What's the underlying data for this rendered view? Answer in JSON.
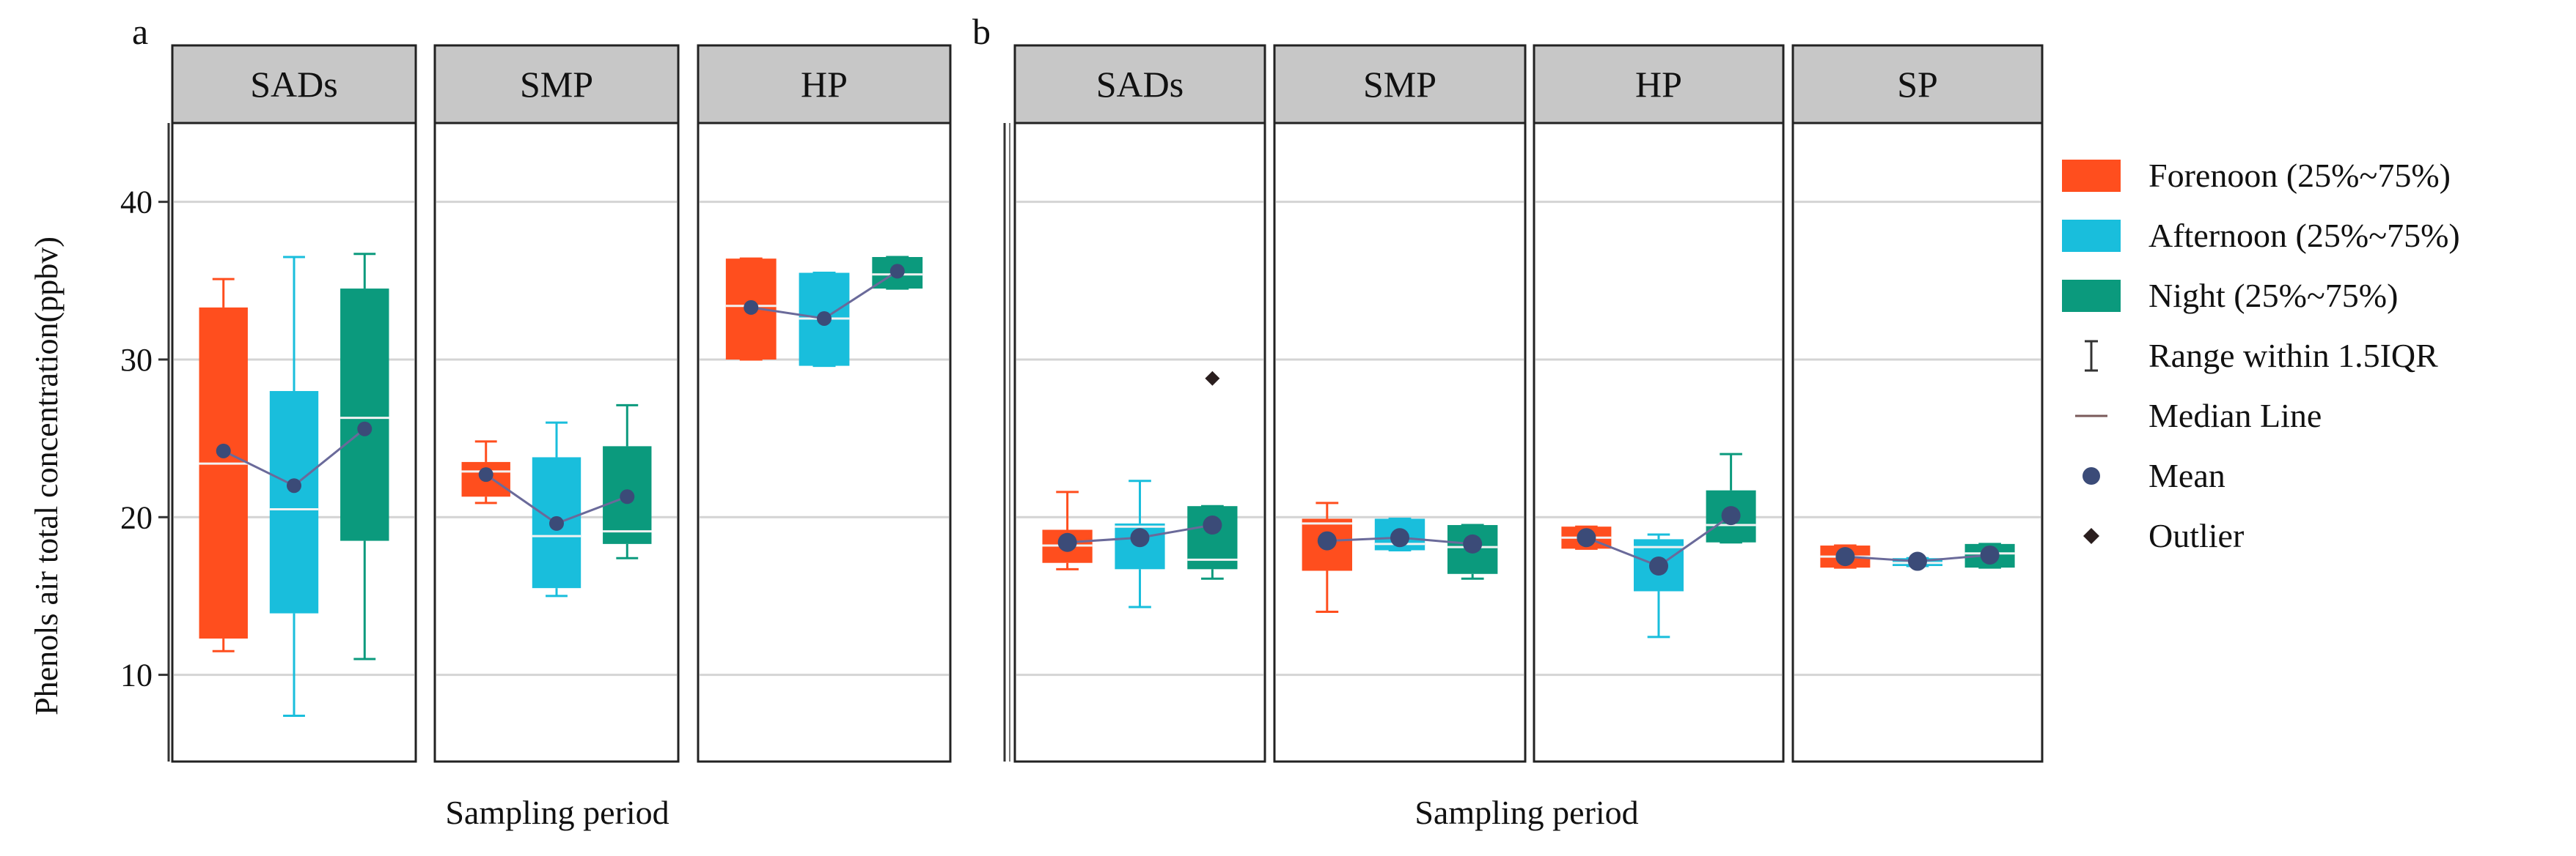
{
  "chart_data": [
    {
      "panel_label": "a",
      "type": "box",
      "ylabel": "Phenols air total concentration(ppbv)",
      "xlabel": "Sampling period",
      "ylim": [
        4.5,
        45
      ],
      "yticks": [
        10,
        20,
        30,
        40
      ],
      "grid": true,
      "groups": [
        "Forenoon",
        "Afternoon",
        "Night"
      ],
      "facets": [
        {
          "label": "SADs",
          "boxes": [
            {
              "group": "Forenoon",
              "whisker_low": 11.5,
              "q1": 12.3,
              "median": 23.4,
              "q3": 33.3,
              "whisker_high": 35.1,
              "mean": 24.2
            },
            {
              "group": "Afternoon",
              "whisker_low": 7.4,
              "q1": 13.9,
              "median": 20.5,
              "q3": 28.0,
              "whisker_high": 36.5,
              "mean": 22.0
            },
            {
              "group": "Night",
              "whisker_low": 11.0,
              "q1": 18.5,
              "median": 26.3,
              "q3": 34.5,
              "whisker_high": 36.7,
              "mean": 25.6
            }
          ]
        },
        {
          "label": "SMP",
          "boxes": [
            {
              "group": "Forenoon",
              "whisker_low": 20.9,
              "q1": 21.3,
              "median": 22.9,
              "q3": 23.5,
              "whisker_high": 24.8,
              "mean": 22.7
            },
            {
              "group": "Afternoon",
              "whisker_low": 15.0,
              "q1": 15.5,
              "median": 18.8,
              "q3": 23.8,
              "whisker_high": 26.0,
              "mean": 19.6
            },
            {
              "group": "Night",
              "whisker_low": 17.4,
              "q1": 18.3,
              "median": 19.1,
              "q3": 24.5,
              "whisker_high": 27.1,
              "mean": 21.3
            }
          ]
        },
        {
          "label": "HP",
          "boxes": [
            {
              "group": "Forenoon",
              "whisker_low": 30.0,
              "q1": 30.0,
              "median": 33.4,
              "q3": 36.4,
              "whisker_high": 36.4,
              "mean": 33.3
            },
            {
              "group": "Afternoon",
              "whisker_low": 29.6,
              "q1": 29.6,
              "median": 32.6,
              "q3": 35.5,
              "whisker_high": 35.5,
              "mean": 32.6
            },
            {
              "group": "Night",
              "whisker_low": 34.5,
              "q1": 34.5,
              "median": 35.4,
              "q3": 36.5,
              "whisker_high": 36.5,
              "mean": 35.6
            }
          ]
        }
      ]
    },
    {
      "panel_label": "b",
      "type": "box",
      "xlabel": "Sampling period",
      "ylim": [
        4.5,
        45
      ],
      "grid": true,
      "groups": [
        "Forenoon",
        "Afternoon",
        "Night"
      ],
      "facets": [
        {
          "label": "SADs",
          "boxes": [
            {
              "group": "Forenoon",
              "whisker_low": 16.7,
              "q1": 17.1,
              "median": 18.2,
              "q3": 19.2,
              "whisker_high": 21.6,
              "mean": 18.4
            },
            {
              "group": "Afternoon",
              "whisker_low": 14.3,
              "q1": 16.7,
              "median": 19.4,
              "q3": 19.6,
              "whisker_high": 22.3,
              "mean": 18.7
            },
            {
              "group": "Night",
              "whisker_low": 16.1,
              "q1": 16.7,
              "median": 17.3,
              "q3": 20.7,
              "whisker_high": 20.7,
              "mean": 19.5,
              "outliers": [
                28.8
              ]
            }
          ]
        },
        {
          "label": "SMP",
          "boxes": [
            {
              "group": "Forenoon",
              "whisker_low": 14.0,
              "q1": 16.6,
              "median": 19.6,
              "q3": 19.9,
              "whisker_high": 20.9,
              "mean": 18.5
            },
            {
              "group": "Afternoon",
              "whisker_low": 17.9,
              "q1": 17.9,
              "median": 18.3,
              "q3": 19.9,
              "whisker_high": 19.9,
              "mean": 18.7
            },
            {
              "group": "Night",
              "whisker_low": 16.1,
              "q1": 16.4,
              "median": 18.1,
              "q3": 19.5,
              "whisker_high": 19.5,
              "mean": 18.3
            }
          ]
        },
        {
          "label": "HP",
          "boxes": [
            {
              "group": "Forenoon",
              "whisker_low": 18.0,
              "q1": 18.0,
              "median": 18.7,
              "q3": 19.4,
              "whisker_high": 19.4,
              "mean": 18.7
            },
            {
              "group": "Afternoon",
              "whisker_low": 12.4,
              "q1": 15.3,
              "median": 18.1,
              "q3": 18.6,
              "whisker_high": 18.9,
              "mean": 16.9
            },
            {
              "group": "Night",
              "whisker_low": 18.4,
              "q1": 18.4,
              "median": 19.5,
              "q3": 21.7,
              "whisker_high": 24.0,
              "mean": 20.1
            }
          ]
        },
        {
          "label": "SP",
          "boxes": [
            {
              "group": "Forenoon",
              "whisker_low": 16.8,
              "q1": 16.8,
              "median": 17.5,
              "q3": 18.2,
              "whisker_high": 18.2,
              "mean": 17.5
            },
            {
              "group": "Afternoon",
              "whisker_low": 16.9,
              "q1": 16.9,
              "median": 17.1,
              "q3": 17.4,
              "whisker_high": 17.4,
              "mean": 17.2
            },
            {
              "group": "Night",
              "whisker_low": 16.8,
              "q1": 16.8,
              "median": 17.7,
              "q3": 18.3,
              "whisker_high": 18.3,
              "mean": 17.6
            }
          ]
        }
      ]
    }
  ],
  "colors": {
    "Forenoon": "#ff4e1e",
    "Afternoon": "#19bedc",
    "Night": "#0b9a7d",
    "mean": "#3b4b78",
    "mean_line": "#6a6a9a",
    "median": "#f2f2f2",
    "outlier": "#2a1e1e",
    "strip": "#c7c7c7",
    "grid": "#d4d4d4"
  },
  "legend": {
    "items": [
      {
        "kind": "patch",
        "group": "Forenoon",
        "label": "Forenoon (25%~75%)"
      },
      {
        "kind": "patch",
        "group": "Afternoon",
        "label": "Afternoon (25%~75%)"
      },
      {
        "kind": "patch",
        "group": "Night",
        "label": "Night (25%~75%)"
      },
      {
        "kind": "range",
        "label": "Range within 1.5IQR"
      },
      {
        "kind": "median",
        "label": "Median Line"
      },
      {
        "kind": "mean",
        "label": "Mean"
      },
      {
        "kind": "outlier",
        "label": "Outlier"
      }
    ]
  }
}
